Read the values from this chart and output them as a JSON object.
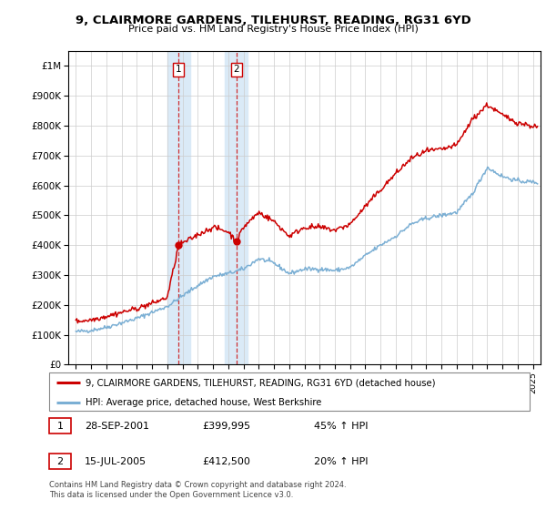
{
  "title": "9, CLAIRMORE GARDENS, TILEHURST, READING, RG31 6YD",
  "subtitle": "Price paid vs. HM Land Registry's House Price Index (HPI)",
  "legend_line1": "9, CLAIRMORE GARDENS, TILEHURST, READING, RG31 6YD (detached house)",
  "legend_line2": "HPI: Average price, detached house, West Berkshire",
  "table_rows": [
    {
      "num": "1",
      "date": "28-SEP-2001",
      "price": "£399,995",
      "hpi": "45% ↑ HPI"
    },
    {
      "num": "2",
      "date": "15-JUL-2005",
      "price": "£412,500",
      "hpi": "20% ↑ HPI"
    }
  ],
  "footnote": "Contains HM Land Registry data © Crown copyright and database right 2024.\nThis data is licensed under the Open Government Licence v3.0.",
  "sale1_x": 2001.75,
  "sale1_y": 399995,
  "sale2_x": 2005.54,
  "sale2_y": 412500,
  "highlight1_x": 2001.75,
  "highlight2_x": 2005.54,
  "ylim": [
    0,
    1050000
  ],
  "xlim": [
    1994.5,
    2025.5
  ],
  "hpi_color": "#7bafd4",
  "price_color": "#cc0000",
  "highlight_color": "#daeaf7",
  "yticks": [
    0,
    100000,
    200000,
    300000,
    400000,
    500000,
    600000,
    700000,
    800000,
    900000,
    1000000
  ],
  "ytick_labels": [
    "£0",
    "£100K",
    "£200K",
    "£300K",
    "£400K",
    "£500K",
    "£600K",
    "£700K",
    "£800K",
    "£900K",
    "£1M"
  ],
  "xticks": [
    1995,
    1996,
    1997,
    1998,
    1999,
    2000,
    2001,
    2002,
    2003,
    2004,
    2005,
    2006,
    2007,
    2008,
    2009,
    2010,
    2011,
    2012,
    2013,
    2014,
    2015,
    2016,
    2017,
    2018,
    2019,
    2020,
    2021,
    2022,
    2023,
    2024,
    2025
  ],
  "hpi_anchors_x": [
    1995.0,
    1996.0,
    1997.0,
    1998.0,
    1999.0,
    2000.0,
    2001.0,
    2002.0,
    2003.0,
    2004.0,
    2005.0,
    2006.0,
    2007.0,
    2008.0,
    2009.0,
    2010.0,
    2011.0,
    2012.0,
    2013.0,
    2014.0,
    2015.0,
    2016.0,
    2017.0,
    2018.0,
    2019.0,
    2020.0,
    2021.0,
    2022.0,
    2023.0,
    2024.0,
    2025.3
  ],
  "hpi_anchors_y": [
    110000,
    115000,
    125000,
    140000,
    155000,
    175000,
    195000,
    230000,
    265000,
    295000,
    305000,
    320000,
    355000,
    340000,
    305000,
    320000,
    320000,
    315000,
    325000,
    365000,
    400000,
    430000,
    470000,
    490000,
    500000,
    510000,
    570000,
    660000,
    630000,
    615000,
    610000
  ],
  "price_anchors_x": [
    1995.0,
    1996.0,
    1997.0,
    1998.0,
    1999.0,
    2000.0,
    2001.0,
    2001.75,
    2002.5,
    2003.0,
    2004.0,
    2005.0,
    2005.54,
    2006.0,
    2007.0,
    2008.0,
    2009.0,
    2010.0,
    2011.0,
    2012.0,
    2013.0,
    2014.0,
    2015.0,
    2016.0,
    2017.0,
    2018.0,
    2019.0,
    2020.0,
    2021.0,
    2022.0,
    2023.0,
    2024.0,
    2025.3
  ],
  "price_anchors_y": [
    145000,
    150000,
    162000,
    175000,
    188000,
    205000,
    225000,
    399995,
    420000,
    435000,
    460000,
    445000,
    412500,
    460000,
    510000,
    480000,
    430000,
    460000,
    460000,
    450000,
    470000,
    530000,
    585000,
    640000,
    690000,
    715000,
    720000,
    735000,
    820000,
    870000,
    835000,
    810000,
    795000
  ]
}
